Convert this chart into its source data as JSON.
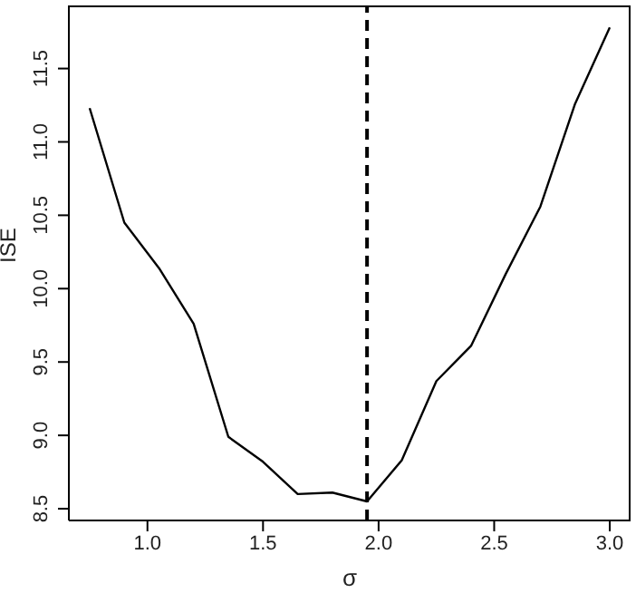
{
  "chart_data": {
    "type": "line",
    "xlabel": "σ",
    "ylabel": "ISE",
    "x": [
      0.75,
      0.9,
      1.05,
      1.2,
      1.35,
      1.5,
      1.65,
      1.8,
      1.95,
      2.1,
      2.25,
      2.4,
      2.55,
      2.7,
      2.85,
      3.0
    ],
    "series": [
      {
        "color": "#000000",
        "values": [
          11.23,
          10.45,
          10.14,
          9.76,
          8.99,
          8.82,
          8.6,
          8.61,
          8.55,
          8.83,
          9.37,
          9.61,
          10.1,
          10.56,
          11.26,
          11.78
        ]
      }
    ],
    "xlim": [
      0.66,
      3.09
    ],
    "xticks": [
      {
        "value": 1,
        "label": "1.0"
      },
      1.5,
      {
        "value": 2,
        "label": "2.0"
      },
      2.5,
      {
        "value": 3,
        "label": "3.0"
      }
    ],
    "ylim": [
      8.42,
      11.93
    ],
    "yticks": [
      8.5,
      {
        "value": 9,
        "label": "9.0"
      },
      9.5,
      {
        "value": 10,
        "label": "10.0"
      },
      10.5,
      {
        "value": 11,
        "label": "11.0"
      },
      11.5
    ],
    "ref_lines": [
      {
        "axis": "x",
        "value": 1.95,
        "color": "#000000",
        "line_style": "dashed"
      }
    ],
    "grid": false,
    "legend": false,
    "marker": "none",
    "line_style": "solid"
  }
}
